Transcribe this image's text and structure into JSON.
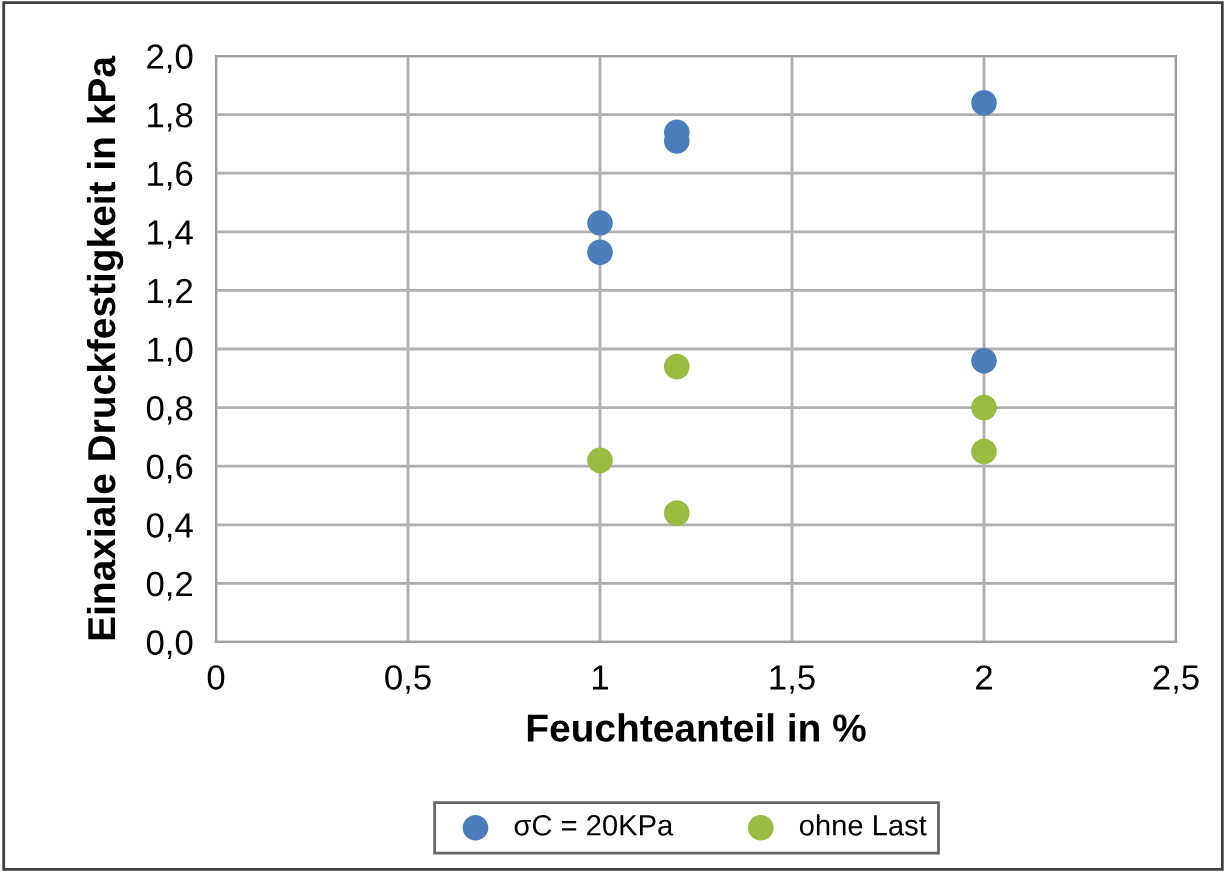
{
  "chart_data": {
    "type": "scatter",
    "xlabel": "Feuchteanteil in %",
    "ylabel": "Einaxiale Druckfestigkeit in kPa",
    "series": [
      {
        "name": "σC = 20KPa",
        "color": "#4a7ebb",
        "x": [
          1,
          1,
          1.2,
          1.2,
          2,
          2
        ],
        "values": [
          1.43,
          1.33,
          1.74,
          1.71,
          1.84,
          0.96
        ]
      },
      {
        "name": "ohne Last",
        "color": "#9bbb40",
        "x": [
          1,
          1.2,
          1.2,
          2,
          2
        ],
        "values": [
          0.62,
          0.94,
          0.44,
          0.8,
          0.65
        ]
      }
    ],
    "xlim": [
      0,
      2.5
    ],
    "xticks": [
      0,
      {
        "value": 0.5,
        "label": "0,5"
      },
      1,
      {
        "value": 1.5,
        "label": "1,5"
      },
      2,
      {
        "value": 2.5,
        "label": "2,5"
      }
    ],
    "ylim": [
      0,
      2.0
    ],
    "yticks": [
      {
        "value": 0,
        "label": "0,0"
      },
      {
        "value": 0.2,
        "label": "0,2"
      },
      {
        "value": 0.4,
        "label": "0,4"
      },
      {
        "value": 0.6,
        "label": "0,6"
      },
      {
        "value": 0.8,
        "label": "0,8"
      },
      {
        "value": 1.0,
        "label": "1,0"
      },
      {
        "value": 1.2,
        "label": "1,2"
      },
      {
        "value": 1.4,
        "label": "1,4"
      },
      {
        "value": 1.6,
        "label": "1,6"
      },
      {
        "value": 1.8,
        "label": "1,8"
      },
      {
        "value": 2.0,
        "label": "2,0"
      }
    ],
    "grid": true,
    "legend": "bottom",
    "marker": "circle"
  }
}
